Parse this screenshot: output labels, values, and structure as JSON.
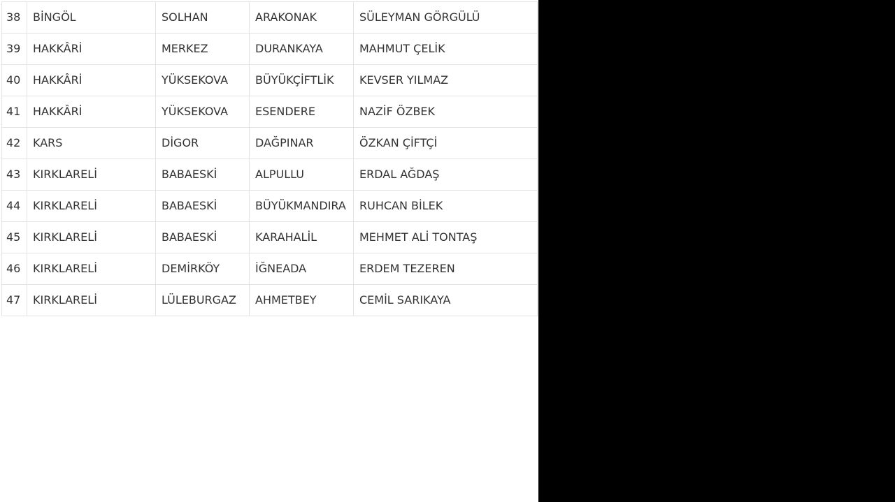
{
  "table": {
    "rows": [
      [
        "38",
        "BİNGÖL",
        "SOLHAN",
        "ARAKONAK",
        "SÜLEYMAN GÖRGÜLÜ"
      ],
      [
        "39",
        "HAKKÂRİ",
        "MERKEZ",
        "DURANKAYA",
        "MAHMUT ÇELİK"
      ],
      [
        "40",
        "HAKKÂRİ",
        "YÜKSEKOVA",
        "BÜYÜKÇİFTLİK",
        "KEVSER YILMAZ"
      ],
      [
        "41",
        "HAKKÂRİ",
        "YÜKSEKOVA",
        "ESENDERE",
        "NAZİF ÖZBEK"
      ],
      [
        "42",
        "KARS",
        "DİGOR",
        "DAĞPINAR",
        "ÖZKAN ÇİFTÇİ"
      ],
      [
        "43",
        "KIRKLARELİ",
        "BABAESKİ",
        "ALPULLU",
        "ERDAL AĞDAŞ"
      ],
      [
        "44",
        "KIRKLARELİ",
        "BABAESKİ",
        "BÜYÜKMANDIRA",
        "RUHCAN BİLEK"
      ],
      [
        "45",
        "KIRKLARELİ",
        "BABAESKİ",
        "KARAHALİL",
        "MEHMET ALİ TONTAŞ"
      ],
      [
        "46",
        "KIRKLARELİ",
        "DEMİRKÖY",
        "İĞNEADA",
        "ERDEM TEZEREN"
      ],
      [
        "47",
        "KIRKLARELİ",
        "LÜLEBURGAZ",
        "AHMETBEY",
        "CEMİL SARIKAYA"
      ]
    ]
  }
}
